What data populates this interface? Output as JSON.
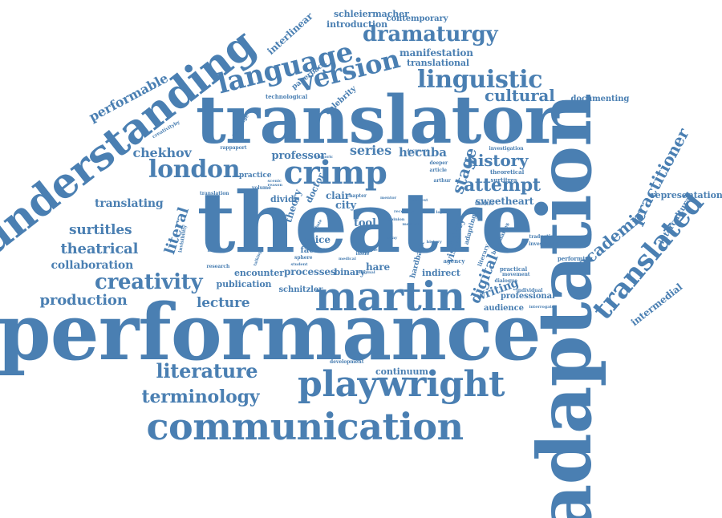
{
  "cloud": {
    "color": "#4a7fb2",
    "words": [
      {
        "text": "theatre"
      },
      {
        "text": "performance"
      },
      {
        "text": "adaptation"
      },
      {
        "text": "translator"
      },
      {
        "text": "communication"
      },
      {
        "text": "understanding"
      },
      {
        "text": "playwright"
      },
      {
        "text": "martin"
      },
      {
        "text": "crimp"
      },
      {
        "text": "language"
      },
      {
        "text": "version"
      },
      {
        "text": "linguistic"
      },
      {
        "text": "translated"
      },
      {
        "text": "dramaturgy"
      },
      {
        "text": "london"
      },
      {
        "text": "literature"
      },
      {
        "text": "terminology"
      },
      {
        "text": "creativity"
      },
      {
        "text": "cultural"
      },
      {
        "text": "practitioner"
      },
      {
        "text": "academic"
      },
      {
        "text": "production"
      },
      {
        "text": "theatrical"
      },
      {
        "text": "performable"
      },
      {
        "text": "surtitles"
      },
      {
        "text": "history"
      },
      {
        "text": "attempt"
      },
      {
        "text": "lecture"
      },
      {
        "text": "literal"
      },
      {
        "text": "chekhov"
      },
      {
        "text": "collaboration"
      },
      {
        "text": "stage"
      },
      {
        "text": "series"
      },
      {
        "text": "hecuba"
      },
      {
        "text": "professor"
      },
      {
        "text": "translating"
      },
      {
        "text": "intermedial"
      },
      {
        "text": "representation"
      },
      {
        "text": "intercultural"
      },
      {
        "text": "digital"
      },
      {
        "text": "writing"
      },
      {
        "text": "sweetheart"
      },
      {
        "text": "interlinear"
      },
      {
        "text": "schleiermacher"
      },
      {
        "text": "introduction"
      },
      {
        "text": "contemporary"
      },
      {
        "text": "manifestation"
      },
      {
        "text": "translational"
      },
      {
        "text": "documenting"
      },
      {
        "text": "celebrity"
      },
      {
        "text": "paperback"
      },
      {
        "text": "continuum"
      },
      {
        "text": "processes"
      },
      {
        "text": "encounter"
      },
      {
        "text": "binary"
      },
      {
        "text": "indirect"
      },
      {
        "text": "publication"
      },
      {
        "text": "schnitzler"
      },
      {
        "text": "professional"
      },
      {
        "text": "audience"
      },
      {
        "text": "tool"
      },
      {
        "text": "city"
      },
      {
        "text": "clair"
      },
      {
        "text": "voice"
      },
      {
        "text": "factor"
      },
      {
        "text": "hare"
      },
      {
        "text": "theory"
      },
      {
        "text": "doctor"
      },
      {
        "text": "divide"
      },
      {
        "text": "practice"
      },
      {
        "text": "visibility"
      },
      {
        "text": "technological"
      },
      {
        "text": "creativityby"
      },
      {
        "text": "routledge"
      },
      {
        "text": "rappaport"
      },
      {
        "text": "investigation"
      },
      {
        "text": "theoretical"
      },
      {
        "text": "surtitres"
      },
      {
        "text": "arthur"
      },
      {
        "text": "article"
      },
      {
        "text": "deeper"
      },
      {
        "text": "document"
      },
      {
        "text": "performing"
      },
      {
        "text": "research"
      },
      {
        "text": "development"
      },
      {
        "text": "agency"
      },
      {
        "text": "practical"
      },
      {
        "text": "movement"
      },
      {
        "text": "dialogue"
      },
      {
        "text": "individual"
      },
      {
        "text": "interrogate"
      },
      {
        "text": "invisibility"
      },
      {
        "text": "theater"
      },
      {
        "text": "literary"
      },
      {
        "text": "traduction"
      },
      {
        "text": "investigate"
      },
      {
        "text": "hardback"
      },
      {
        "text": "adapting"
      },
      {
        "text": "boundaries"
      },
      {
        "text": "chapter"
      },
      {
        "text": "issue"
      },
      {
        "text": "sphere"
      },
      {
        "text": "narrative"
      },
      {
        "text": "volume"
      },
      {
        "text": "translation"
      },
      {
        "text": "reception"
      },
      {
        "text": "scenic"
      },
      {
        "text": "rhetoric"
      },
      {
        "text": "medical"
      },
      {
        "text": "original"
      },
      {
        "text": "sample"
      },
      {
        "text": "student"
      },
      {
        "text": "mentor"
      },
      {
        "text": "opinion"
      },
      {
        "text": "talking"
      },
      {
        "text": "reason"
      },
      {
        "text": "context"
      },
      {
        "text": "essay"
      },
      {
        "text": "history"
      },
      {
        "text": "loyal"
      },
      {
        "text": "debate"
      },
      {
        "text": "method"
      }
    ]
  }
}
